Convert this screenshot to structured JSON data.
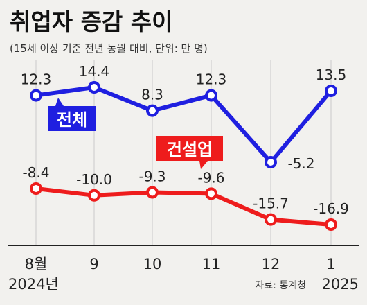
{
  "title": "취업자 증감 추이",
  "subtitle": "(15세 이상 기준 전년 동월 대비, 단위: 만 명)",
  "source": "자료: 통계청",
  "colors": {
    "total": "#1f1fe0",
    "construction": "#ee1c1c",
    "background": "#f2f1ee"
  },
  "chart_data": {
    "type": "line",
    "categories": [
      "8월",
      "9",
      "10",
      "11",
      "12",
      "1"
    ],
    "year_labels": {
      "start": "2024년",
      "end": "2025"
    },
    "series": [
      {
        "name": "전체",
        "values": [
          12.3,
          14.4,
          8.3,
          12.3,
          -5.2,
          13.5
        ],
        "labels": [
          "12.3",
          "14.4",
          "8.3",
          "12.3",
          "-5.2",
          "13.5"
        ]
      },
      {
        "name": "건설업",
        "values": [
          -8.4,
          -10.0,
          -9.3,
          -9.6,
          -15.7,
          -16.9
        ],
        "labels": [
          "-8.4",
          "-10.0",
          "-9.3",
          "-9.6",
          "-15.7",
          "-16.9"
        ]
      }
    ],
    "xlabel": "",
    "ylabel": ""
  }
}
